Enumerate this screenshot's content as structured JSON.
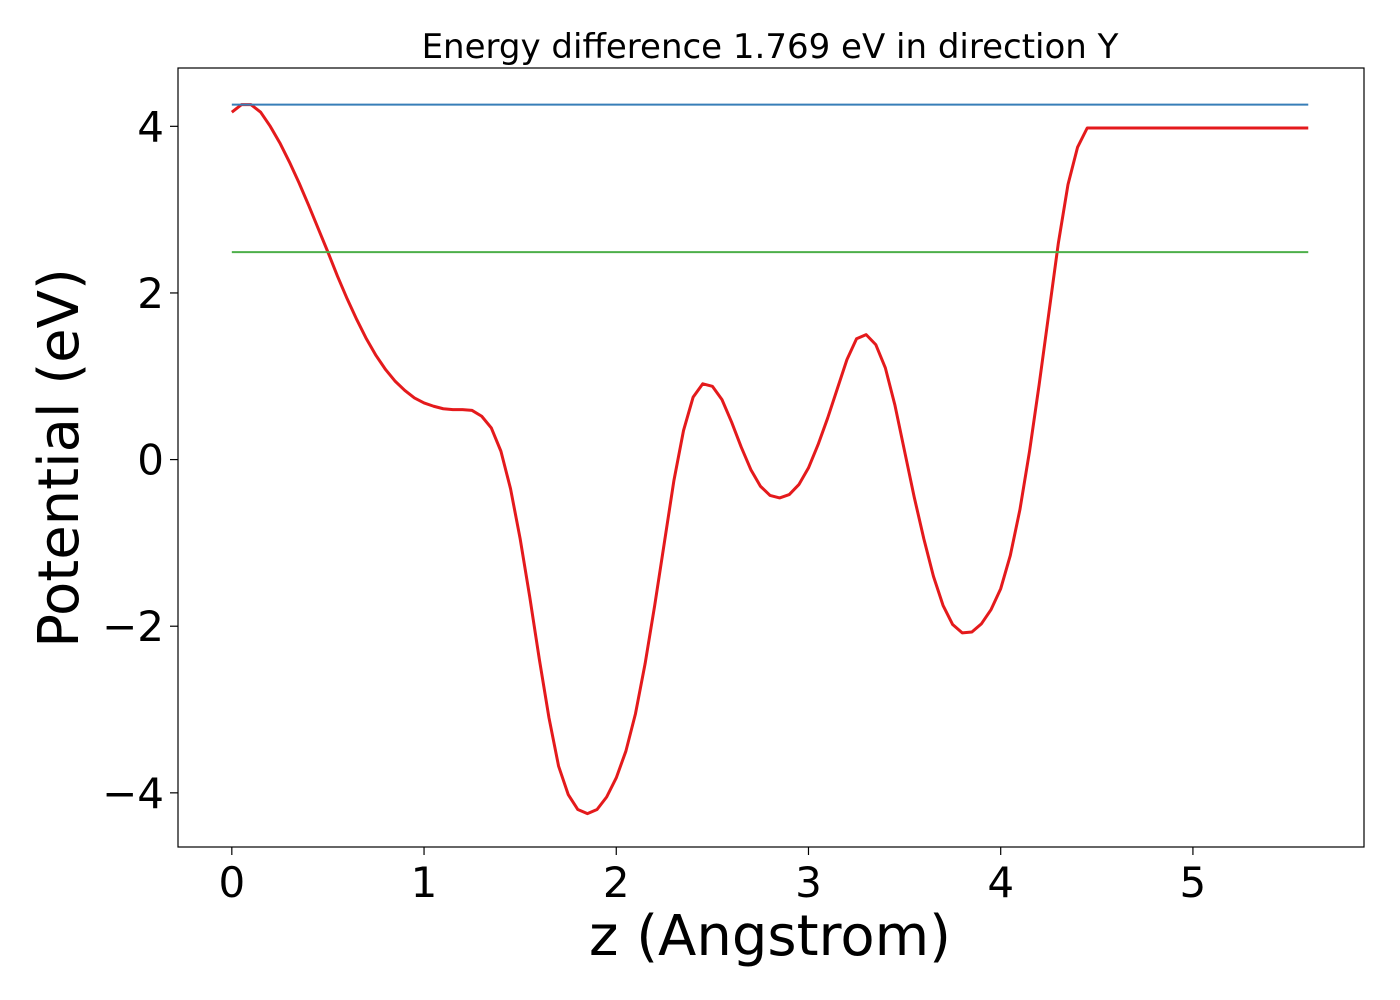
{
  "chart_data": {
    "type": "line",
    "title": "Energy difference 1.769 eV in direction Y",
    "xlabel": "z (Angstrom)",
    "ylabel": "Potential (eV)",
    "xlim": [
      -0.28,
      5.89
    ],
    "ylim": [
      -4.65,
      4.7
    ],
    "xticks": [
      0,
      1,
      2,
      3,
      4,
      5
    ],
    "yticks": [
      -4,
      -2,
      0,
      2,
      4
    ],
    "ytick_labels": [
      "−4",
      "−2",
      "0",
      "2",
      "4"
    ],
    "grid": false,
    "colors": {
      "potential": "#e41a1c",
      "upper": "#377eb8",
      "lower": "#4daf4a"
    },
    "series": [
      {
        "x": [
          0.0,
          0.05,
          0.1,
          0.15,
          0.2,
          0.25,
          0.3,
          0.35,
          0.4,
          0.45,
          0.5,
          0.55,
          0.6,
          0.65,
          0.7,
          0.75,
          0.8,
          0.85,
          0.9,
          0.95,
          1.0,
          1.05,
          1.1,
          1.15,
          1.2,
          1.25,
          1.3,
          1.35,
          1.4,
          1.45,
          1.5,
          1.55,
          1.6,
          1.65,
          1.7,
          1.75,
          1.8,
          1.85,
          1.9,
          1.95,
          2.0,
          2.05,
          2.1,
          2.15,
          2.2,
          2.25,
          2.3,
          2.35,
          2.4,
          2.45,
          2.5,
          2.55,
          2.6,
          2.65,
          2.7,
          2.75,
          2.8,
          2.85,
          2.9,
          2.95,
          3.0,
          3.05,
          3.1,
          3.15,
          3.2,
          3.25,
          3.3,
          3.35,
          3.4,
          3.45,
          3.5,
          3.55,
          3.6,
          3.65,
          3.7,
          3.75,
          3.8,
          3.85,
          3.9,
          3.95,
          4.0,
          4.05,
          4.1,
          4.15,
          4.2,
          4.25,
          4.3,
          4.35,
          4.4,
          4.45,
          4.5,
          4.55,
          4.6,
          4.65,
          4.7,
          4.75,
          4.8,
          4.85,
          4.9,
          4.95,
          5.0,
          5.05,
          5.1,
          5.15,
          5.2,
          5.25,
          5.3,
          5.35,
          5.4,
          5.45,
          5.5,
          5.55,
          5.6
        ],
        "y": [
          4.17,
          4.26,
          4.26,
          4.17,
          4.0,
          3.8,
          3.57,
          3.32,
          3.05,
          2.77,
          2.49,
          2.2,
          1.93,
          1.68,
          1.45,
          1.25,
          1.08,
          0.94,
          0.83,
          0.74,
          0.68,
          0.64,
          0.61,
          0.6,
          0.6,
          0.59,
          0.52,
          0.38,
          0.1,
          -0.35,
          -0.95,
          -1.65,
          -2.4,
          -3.1,
          -3.68,
          -4.02,
          -4.2,
          -4.25,
          -4.2,
          -4.05,
          -3.82,
          -3.5,
          -3.05,
          -2.45,
          -1.75,
          -1.0,
          -0.25,
          0.35,
          0.75,
          0.91,
          0.88,
          0.72,
          0.45,
          0.15,
          -0.12,
          -0.32,
          -0.43,
          -0.46,
          -0.42,
          -0.3,
          -0.1,
          0.18,
          0.5,
          0.85,
          1.2,
          1.45,
          1.5,
          1.38,
          1.1,
          0.65,
          0.1,
          -0.45,
          -0.95,
          -1.4,
          -1.75,
          -1.98,
          -2.08,
          -2.07,
          -1.97,
          -1.8,
          -1.55,
          -1.15,
          -0.6,
          0.1,
          0.9,
          1.75,
          2.6,
          3.3,
          3.75,
          3.98,
          3.98,
          3.98,
          3.98,
          3.98,
          3.98,
          3.98,
          3.98,
          3.98,
          3.98,
          3.98,
          3.98,
          3.98,
          3.98,
          3.98,
          3.98,
          3.98,
          3.98,
          3.98,
          3.98,
          3.98,
          3.98,
          3.98,
          3.98
        ]
      },
      {
        "x": [
          0.0,
          5.6
        ],
        "y": [
          4.26,
          4.26
        ]
      },
      {
        "x": [
          0.0,
          5.6
        ],
        "y": [
          2.49,
          2.49
        ]
      }
    ]
  }
}
